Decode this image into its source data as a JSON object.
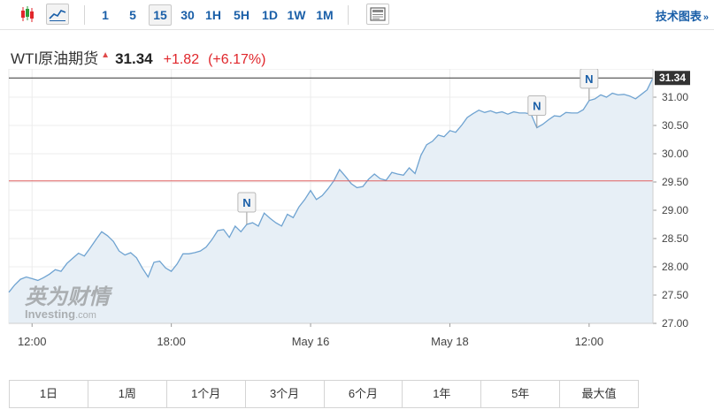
{
  "toolbar": {
    "intervals": [
      {
        "label": "1",
        "active": false
      },
      {
        "label": "5",
        "active": false
      },
      {
        "label": "15",
        "active": true
      },
      {
        "label": "30",
        "active": false
      },
      {
        "label": "1H",
        "active": false
      },
      {
        "label": "5H",
        "active": false
      },
      {
        "label": "1D",
        "active": false
      },
      {
        "label": "1W",
        "active": false
      },
      {
        "label": "1M",
        "active": false
      }
    ],
    "tech_chart_label": "技术图表",
    "tech_chart_arrow": "»",
    "icons": [
      "candlestick-icon",
      "line-chart-icon",
      "news-panel-icon"
    ]
  },
  "quote": {
    "name": "WTI原油期货",
    "direction": "up",
    "price": "31.34",
    "change": "+1.82",
    "change_pct": "(+6.17%)",
    "up_color": "#e0262b"
  },
  "watermark": {
    "brand_cn": "英为财情",
    "brand_en_a": "Investing",
    "brand_en_b": ".com"
  },
  "chart_data": {
    "type": "area",
    "line_color": "#6fa3d1",
    "fill_color": "#e7eff6",
    "ylim": [
      27.0,
      31.5
    ],
    "y_ticks": [
      "27.00",
      "27.50",
      "28.00",
      "28.50",
      "29.00",
      "29.50",
      "30.00",
      "30.50",
      "31.00"
    ],
    "y_tick_values": [
      27.0,
      27.5,
      28.0,
      28.5,
      29.0,
      29.5,
      30.0,
      30.5,
      31.0
    ],
    "x_ticks": [
      {
        "label": "12:00",
        "index": 4
      },
      {
        "label": "18:00",
        "index": 28
      },
      {
        "label": "May 16",
        "index": 52
      },
      {
        "label": "May 18",
        "index": 76
      },
      {
        "label": "12:00",
        "index": 100
      }
    ],
    "last_price": 31.34,
    "last_price_label": "31.34",
    "reference_price": 29.52,
    "news_markers": [
      {
        "label": "N",
        "index": 41
      },
      {
        "label": "N",
        "index": 91
      },
      {
        "label": "N",
        "index": 100
      }
    ],
    "values": [
      27.55,
      27.68,
      27.78,
      27.82,
      27.79,
      27.76,
      27.81,
      27.87,
      27.95,
      27.92,
      28.06,
      28.15,
      28.24,
      28.19,
      28.33,
      28.48,
      28.62,
      28.55,
      28.45,
      28.28,
      28.21,
      28.25,
      28.16,
      27.98,
      27.82,
      28.08,
      28.1,
      27.98,
      27.92,
      28.05,
      28.23,
      28.23,
      28.25,
      28.28,
      28.35,
      28.48,
      28.64,
      28.66,
      28.52,
      28.72,
      28.62,
      28.75,
      28.78,
      28.72,
      28.95,
      28.86,
      28.78,
      28.72,
      28.93,
      28.87,
      29.06,
      29.19,
      29.35,
      29.19,
      29.26,
      29.38,
      29.52,
      29.72,
      29.6,
      29.47,
      29.4,
      29.42,
      29.55,
      29.64,
      29.56,
      29.53,
      29.67,
      29.64,
      29.62,
      29.75,
      29.65,
      29.97,
      30.16,
      30.22,
      30.33,
      30.3,
      30.41,
      30.38,
      30.5,
      30.64,
      30.71,
      30.77,
      30.73,
      30.76,
      30.72,
      30.74,
      30.7,
      30.74,
      30.72,
      30.72,
      30.7,
      30.46,
      30.52,
      30.6,
      30.67,
      30.66,
      30.73,
      30.72,
      30.72,
      30.78,
      30.94,
      30.97,
      31.04,
      31.0,
      31.07,
      31.04,
      31.05,
      31.02,
      30.97,
      31.05,
      31.13,
      31.34
    ]
  },
  "ranges": [
    "1日",
    "1周",
    "1个月",
    "3个月",
    "6个月",
    "1年",
    "5年",
    "最大值"
  ]
}
